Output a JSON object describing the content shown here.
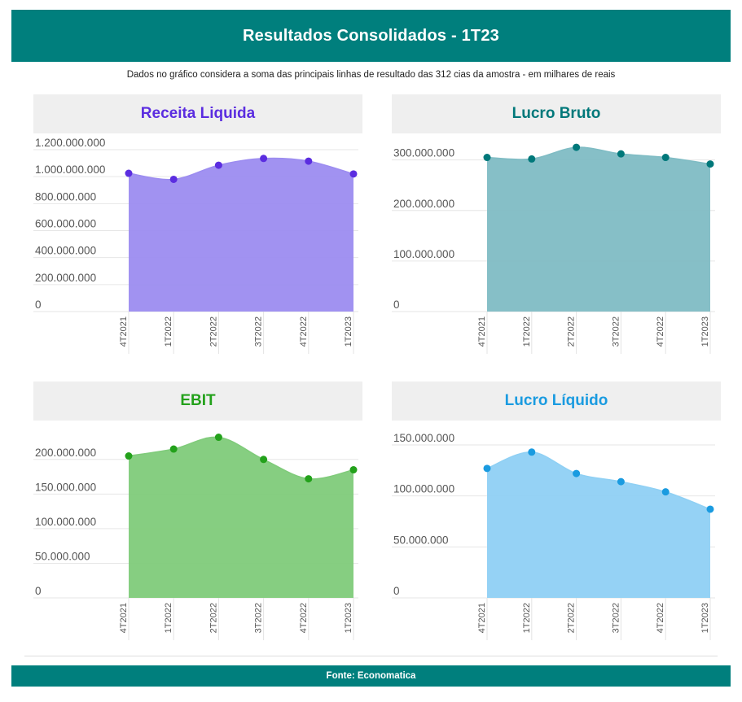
{
  "header": {
    "title": "Resultados Consolidados - 1T23"
  },
  "subtitle": "Dados no gráfico considera a soma das principais linhas de resultado das 312 cias da amostra - em milhares de reais",
  "footer": {
    "source": "Fonte: Economatica"
  },
  "chart_data": [
    {
      "type": "area",
      "title": "Receita Liquida",
      "color": "#5b2de0",
      "fill": "#9c8cf0",
      "x": [
        "4T2021",
        "1T2022",
        "2T2022",
        "3T2022",
        "4T2022",
        "1T2023"
      ],
      "values": [
        1025000000,
        980000000,
        1085000000,
        1135000000,
        1115000000,
        1020000000
      ],
      "ylim": [
        0,
        1200000000
      ],
      "yticks": [
        0,
        200000000,
        400000000,
        600000000,
        800000000,
        1000000000,
        1200000000
      ],
      "ytick_labels": [
        "0",
        "200.000.000",
        "400.000.000",
        "600.000.000",
        "800.000.000",
        "1.000.000.000",
        "1.200.000.000"
      ],
      "grid": true
    },
    {
      "type": "area",
      "title": "Lucro Bruto",
      "color": "#00787a",
      "fill": "#7fbcc4",
      "x": [
        "4T2021",
        "1T2022",
        "2T2022",
        "3T2022",
        "4T2022",
        "1T2023"
      ],
      "values": [
        305000000,
        302000000,
        325000000,
        312000000,
        305000000,
        292000000
      ],
      "ylim": [
        0,
        330000000
      ],
      "yticks": [
        0,
        100000000,
        200000000,
        300000000
      ],
      "ytick_labels": [
        "0",
        "100.000.000",
        "200.000.000",
        "300.000.000"
      ],
      "grid": true
    },
    {
      "type": "area",
      "title": "EBIT",
      "color": "#23a11b",
      "fill": "#7fcb7a",
      "x": [
        "4T2021",
        "1T2022",
        "2T2022",
        "3T2022",
        "4T2022",
        "1T2023"
      ],
      "values": [
        205000000,
        215000000,
        232000000,
        200000000,
        172000000,
        185000000
      ],
      "ylim": [
        0,
        235000000
      ],
      "yticks": [
        0,
        50000000,
        100000000,
        150000000,
        200000000
      ],
      "ytick_labels": [
        "0",
        "50.000.000",
        "100.000.000",
        "150.000.000",
        "200.000.000"
      ],
      "grid": true
    },
    {
      "type": "area",
      "title": "Lucro Líquido",
      "color": "#1a9be0",
      "fill": "#8fd0f4",
      "x": [
        "4T2021",
        "1T2022",
        "2T2022",
        "3T2022",
        "4T2022",
        "1T2023"
      ],
      "values": [
        127000000,
        143000000,
        122000000,
        114000000,
        104000000,
        87000000
      ],
      "ylim": [
        0,
        150000000
      ],
      "yticks": [
        0,
        50000000,
        100000000,
        150000000
      ],
      "ytick_labels": [
        "0",
        "50.000.000",
        "100.000.000",
        "150.000.000"
      ],
      "grid": true
    }
  ]
}
